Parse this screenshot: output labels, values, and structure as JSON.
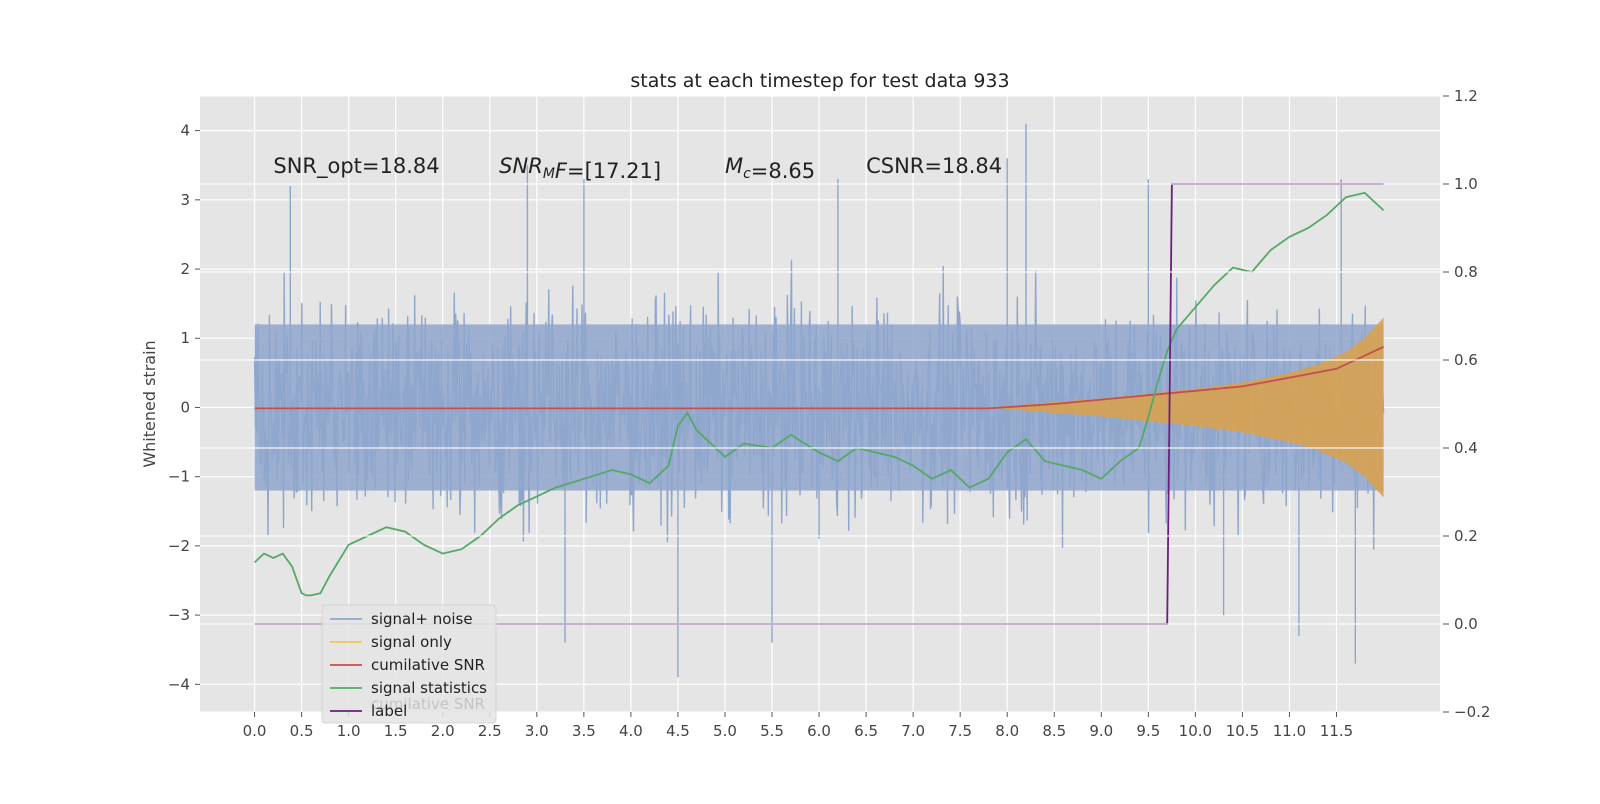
{
  "chart_data": {
    "type": "line",
    "title": "stats at each timestep for test data 933",
    "ylabel": "Whitened strain",
    "xlabel": "",
    "x_ticks": [
      "0.0",
      "0.5",
      "1.0",
      "1.5",
      "2.0",
      "2.5",
      "3.0",
      "3.5",
      "4.0",
      "4.5",
      "5.0",
      "5.5",
      "6.0",
      "6.5",
      "7.0",
      "7.5",
      "8.0",
      "8.5",
      "9.0",
      "9.5",
      "10.0",
      "10.5",
      "11.0",
      "11.5"
    ],
    "xlim": [
      -0.58,
      12.6
    ],
    "ylim_left": [
      -4.4,
      4.5
    ],
    "y_ticks_left": [
      -4,
      -3,
      -2,
      -1,
      0,
      1,
      2,
      3,
      4
    ],
    "ylim_right": [
      -0.2,
      1.2
    ],
    "y_ticks_right": [
      -0.2,
      0.0,
      0.2,
      0.4,
      0.6,
      0.8,
      1.0,
      1.2
    ],
    "grid": true,
    "legend_placement": "lower-left",
    "annotations": [
      {
        "text": "SNR_opt=18.84",
        "x": 0.2,
        "y": 3.3
      },
      {
        "text": "SNR_MF=[17.21]",
        "x": 2.6,
        "y": 3.3,
        "italic_prefix": "SNR",
        "sub": "M",
        "italic_suffix": "F",
        "rest": "=[17.21]"
      },
      {
        "text": "M_c=8.65",
        "x": 5.0,
        "y": 3.3,
        "italic_prefix": "M",
        "sub": "c",
        "rest": "=8.65"
      },
      {
        "text": "CSNR=18.84",
        "x": 6.5,
        "y": 3.3
      }
    ],
    "series": [
      {
        "name": "signal+ noise",
        "color": "#8fa6cc",
        "axis": "left",
        "style": "noise",
        "x_range": [
          0.0,
          12.0
        ],
        "typical_min": -2.0,
        "typical_max": 2.0,
        "extremes": [
          [
            0.38,
            3.2
          ],
          [
            2.9,
            3.5
          ],
          [
            3.5,
            3.3
          ],
          [
            4.5,
            -3.9
          ],
          [
            5.5,
            -3.4
          ],
          [
            6.0,
            -1.9
          ],
          [
            6.2,
            3.3
          ],
          [
            8.2,
            4.1
          ],
          [
            8.0,
            3.6
          ],
          [
            9.5,
            3.3
          ],
          [
            11.1,
            -3.3
          ],
          [
            11.7,
            -3.7
          ],
          [
            11.55,
            3.3
          ],
          [
            10.3,
            -3.0
          ],
          [
            3.3,
            -3.4
          ]
        ]
      },
      {
        "name": "signal only",
        "color": "#d8a24f",
        "axis": "left",
        "style": "envelope",
        "x": [
          7.8,
          8.5,
          9.0,
          9.5,
          10.0,
          10.5,
          11.0,
          11.3,
          11.6,
          11.8,
          12.0
        ],
        "amplitude": [
          0.0,
          0.08,
          0.13,
          0.2,
          0.27,
          0.36,
          0.5,
          0.62,
          0.8,
          1.0,
          1.3
        ]
      },
      {
        "name": "cumilative SNR",
        "color": "#c44e52",
        "axis": "right",
        "x": [
          0.0,
          7.0,
          7.8,
          8.5,
          9.0,
          9.5,
          10.0,
          10.5,
          11.0,
          11.5,
          12.0
        ],
        "values": [
          0.49,
          0.49,
          0.49,
          0.5,
          0.51,
          0.52,
          0.53,
          0.54,
          0.56,
          0.58,
          0.63
        ]
      },
      {
        "name": "signal statistics",
        "color": "#55a868",
        "axis": "right",
        "x": [
          0.0,
          0.1,
          0.2,
          0.3,
          0.4,
          0.5,
          0.55,
          0.6,
          0.7,
          0.8,
          1.0,
          1.2,
          1.4,
          1.6,
          1.8,
          2.0,
          2.2,
          2.4,
          2.6,
          2.8,
          3.0,
          3.2,
          3.5,
          3.8,
          4.0,
          4.2,
          4.4,
          4.5,
          4.6,
          4.7,
          4.8,
          5.0,
          5.2,
          5.5,
          5.7,
          6.0,
          6.2,
          6.4,
          6.6,
          6.8,
          7.0,
          7.2,
          7.4,
          7.6,
          7.8,
          8.0,
          8.2,
          8.4,
          8.6,
          8.8,
          9.0,
          9.2,
          9.4,
          9.5,
          9.6,
          9.7,
          9.8,
          10.0,
          10.2,
          10.4,
          10.6,
          10.8,
          11.0,
          11.2,
          11.4,
          11.6,
          11.8,
          12.0
        ],
        "values": [
          0.14,
          0.16,
          0.15,
          0.16,
          0.13,
          0.07,
          0.065,
          0.065,
          0.07,
          0.11,
          0.18,
          0.2,
          0.22,
          0.21,
          0.18,
          0.16,
          0.17,
          0.2,
          0.24,
          0.27,
          0.29,
          0.31,
          0.33,
          0.35,
          0.34,
          0.32,
          0.36,
          0.45,
          0.48,
          0.44,
          0.42,
          0.38,
          0.41,
          0.4,
          0.43,
          0.39,
          0.37,
          0.4,
          0.39,
          0.38,
          0.36,
          0.33,
          0.35,
          0.31,
          0.33,
          0.39,
          0.42,
          0.37,
          0.36,
          0.35,
          0.33,
          0.37,
          0.4,
          0.47,
          0.55,
          0.62,
          0.67,
          0.72,
          0.77,
          0.81,
          0.8,
          0.85,
          0.88,
          0.9,
          0.93,
          0.97,
          0.98,
          0.94
        ]
      },
      {
        "name": "label",
        "color": "#6b1f7a",
        "axis": "right",
        "x": [
          0.0,
          9.7,
          9.75,
          12.0
        ],
        "values": [
          0.0,
          0.0,
          1.0,
          1.0
        ]
      }
    ],
    "legend_ghost_text": "cumilative SNR"
  }
}
